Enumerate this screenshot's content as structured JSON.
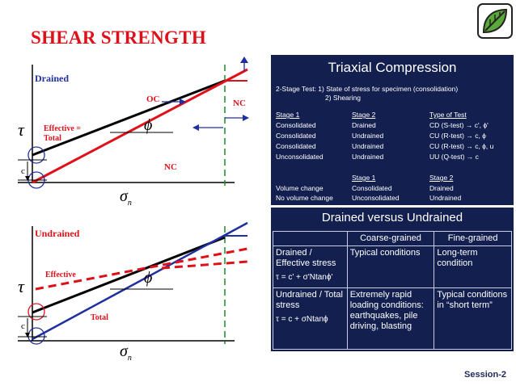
{
  "title": "SHEAR STRENGTH",
  "footer": {
    "session": "Session-2"
  },
  "logo": {
    "icon": "leaf-logo-icon"
  },
  "drained_diagram": {
    "label": "Drained",
    "oc": "OC",
    "nc_top": "NC",
    "nc_mid": "NC",
    "effective_total": "Effective = Total",
    "tau": "τ",
    "sigma": "σ",
    "sigma_sub": "n",
    "c": "c",
    "phi": "ϕ"
  },
  "undrained_diagram": {
    "label": "Undrained",
    "effective": "Effective",
    "total": "Total",
    "tau": "τ",
    "sigma": "σ",
    "sigma_sub": "n",
    "c": "c",
    "phi": "ϕ"
  },
  "triaxial": {
    "title": "Triaxial Compression",
    "line1": "2-Stage Test: 1) State of stress for specimen (consolidation)",
    "line2": "2) Shearing",
    "headers": [
      "Stage 1",
      "Stage 2",
      "Type of Test"
    ],
    "rows": [
      [
        "Consolidated",
        "Drained",
        "CD (S-test) → c', ϕ'"
      ],
      [
        "Consolidated",
        "Undrained",
        "CU (R-test) → c, ϕ"
      ],
      [
        "Consolidated",
        "Undrained",
        "CU (R-test) → c, ϕ, u"
      ],
      [
        "Unconsolidated",
        "Undrained",
        "UU (Q-test) → c"
      ]
    ],
    "headers2": [
      "Stage 1",
      "Stage 2"
    ],
    "rows2": [
      [
        "Volume change",
        "Consolidated",
        "Drained"
      ],
      [
        "No volume change",
        "Unconsolidated",
        "Undrained"
      ]
    ]
  },
  "dvu": {
    "title": "Drained versus Undrained",
    "col_headers": [
      "",
      "Coarse-grained",
      "Fine-grained"
    ],
    "row1": {
      "label": "Drained / Effective stress",
      "eq": "τ = c' + σ'Ntanϕ'",
      "coarse": "Typical conditions",
      "fine": "Long-term condition"
    },
    "row2": {
      "label": "Undrained / Total stress",
      "eq": "τ = c + σNtanϕ",
      "coarse": "Extremely rapid loading conditions: earthquakes, pile driving, blasting",
      "fine": "Typical conditions in “short term”"
    }
  }
}
